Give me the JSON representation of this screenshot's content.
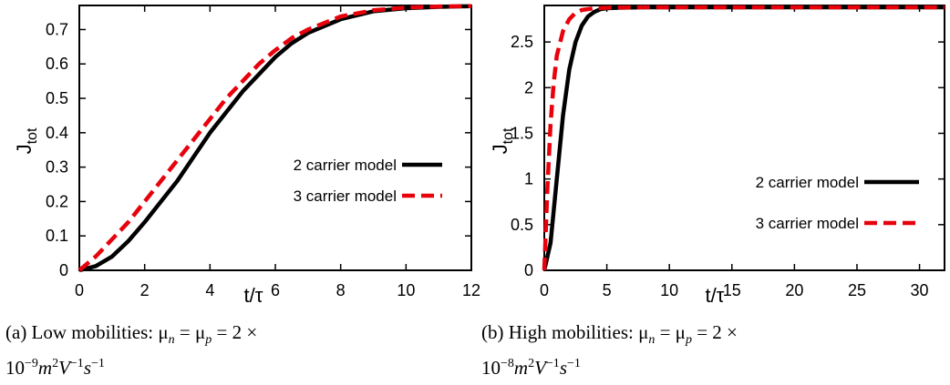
{
  "chart_data": [
    {
      "type": "line",
      "xlabel": "t/τ",
      "ylabel": "J",
      "ylabel_sub": "tot",
      "xlim": [
        0,
        12
      ],
      "ylim": [
        0,
        0.77
      ],
      "xticks": [
        "0",
        "2",
        "4",
        "6",
        "8",
        "10",
        "12"
      ],
      "xtick_values": [
        0,
        2,
        4,
        6,
        8,
        10,
        12
      ],
      "yticks": [
        "0",
        "0.1",
        "0.2",
        "0.3",
        "0.4",
        "0.5",
        "0.6",
        "0.7"
      ],
      "ytick_values": [
        0,
        0.1,
        0.2,
        0.3,
        0.4,
        0.5,
        0.6,
        0.7
      ],
      "grid": false,
      "legend_position": "right",
      "series": [
        {
          "name": "2 carrier model",
          "color": "#000000",
          "style": "solid",
          "x": [
            0,
            0.5,
            1,
            1.5,
            2,
            2.5,
            3,
            3.5,
            4,
            4.5,
            5,
            5.5,
            6,
            6.5,
            7,
            8,
            9,
            10,
            11,
            12
          ],
          "y": [
            0,
            0.012,
            0.04,
            0.085,
            0.14,
            0.2,
            0.26,
            0.33,
            0.4,
            0.46,
            0.52,
            0.57,
            0.62,
            0.66,
            0.69,
            0.73,
            0.753,
            0.762,
            0.766,
            0.768
          ]
        },
        {
          "name": "3 carrier model",
          "color": "#e8000b",
          "style": "dashed",
          "x": [
            0,
            0.5,
            1,
            1.5,
            2,
            2.5,
            3,
            3.5,
            4,
            4.5,
            5,
            5.5,
            6,
            6.5,
            7,
            8,
            9,
            10,
            11,
            12
          ],
          "y": [
            0,
            0.04,
            0.09,
            0.14,
            0.2,
            0.26,
            0.32,
            0.38,
            0.44,
            0.5,
            0.55,
            0.6,
            0.64,
            0.675,
            0.7,
            0.738,
            0.756,
            0.764,
            0.767,
            0.768
          ]
        }
      ],
      "caption_line1": "(a) Low mobilities: μ",
      "caption_line1_sub1": "n",
      "caption_line1_mid": " = μ",
      "caption_line1_sub2": "p",
      "caption_line1_end": " = 2 ×",
      "caption_line2": "10",
      "caption_line2_sup1": "−9",
      "caption_line2_mid": "m",
      "caption_line2_sup2": "2",
      "caption_line2_v": "V",
      "caption_line2_sup3": "−1",
      "caption_line2_s": "s",
      "caption_line2_sup4": "−1"
    },
    {
      "type": "line",
      "xlabel": "t/τ",
      "ylabel": "J",
      "ylabel_sub": "tot",
      "xlim": [
        0,
        32
      ],
      "ylim": [
        0,
        2.9
      ],
      "xticks": [
        "0",
        "5",
        "10",
        "15",
        "20",
        "25",
        "30"
      ],
      "xtick_values": [
        0,
        5,
        10,
        15,
        20,
        25,
        30
      ],
      "yticks": [
        "0",
        "0.5",
        "1",
        "1.5",
        "2",
        "2.5"
      ],
      "ytick_values": [
        0,
        0.5,
        1,
        1.5,
        2,
        2.5
      ],
      "grid": false,
      "legend_position": "right",
      "series": [
        {
          "name": "2 carrier model",
          "color": "#000000",
          "style": "solid",
          "x": [
            0,
            0.5,
            1,
            1.5,
            2,
            2.5,
            3,
            3.5,
            4,
            4.5,
            5,
            6,
            7,
            8,
            10,
            15,
            20,
            25,
            30,
            32
          ],
          "y": [
            0,
            0.3,
            1.0,
            1.7,
            2.2,
            2.5,
            2.68,
            2.78,
            2.83,
            2.86,
            2.87,
            2.875,
            2.878,
            2.88,
            2.88,
            2.88,
            2.88,
            2.88,
            2.88,
            2.88
          ]
        },
        {
          "name": "3 carrier model",
          "color": "#e8000b",
          "style": "dashed",
          "x": [
            0,
            0.25,
            0.5,
            0.75,
            1,
            1.5,
            2,
            2.5,
            3,
            4,
            5,
            6,
            8,
            10,
            15,
            20,
            25,
            30,
            32
          ],
          "y": [
            0,
            0.9,
            1.6,
            2.05,
            2.35,
            2.62,
            2.75,
            2.82,
            2.85,
            2.87,
            2.875,
            2.878,
            2.88,
            2.88,
            2.88,
            2.88,
            2.88,
            2.88,
            2.88
          ]
        }
      ],
      "caption_line1": "(b) High mobilities: μ",
      "caption_line1_sub1": "n",
      "caption_line1_mid": " = μ",
      "caption_line1_sub2": "p",
      "caption_line1_end": " = 2 ×",
      "caption_line2": "10",
      "caption_line2_sup1": "−8",
      "caption_line2_mid": "m",
      "caption_line2_sup2": "2",
      "caption_line2_v": "V",
      "caption_line2_sup3": "−1",
      "caption_line2_s": "s",
      "caption_line2_sup4": "−1"
    }
  ]
}
